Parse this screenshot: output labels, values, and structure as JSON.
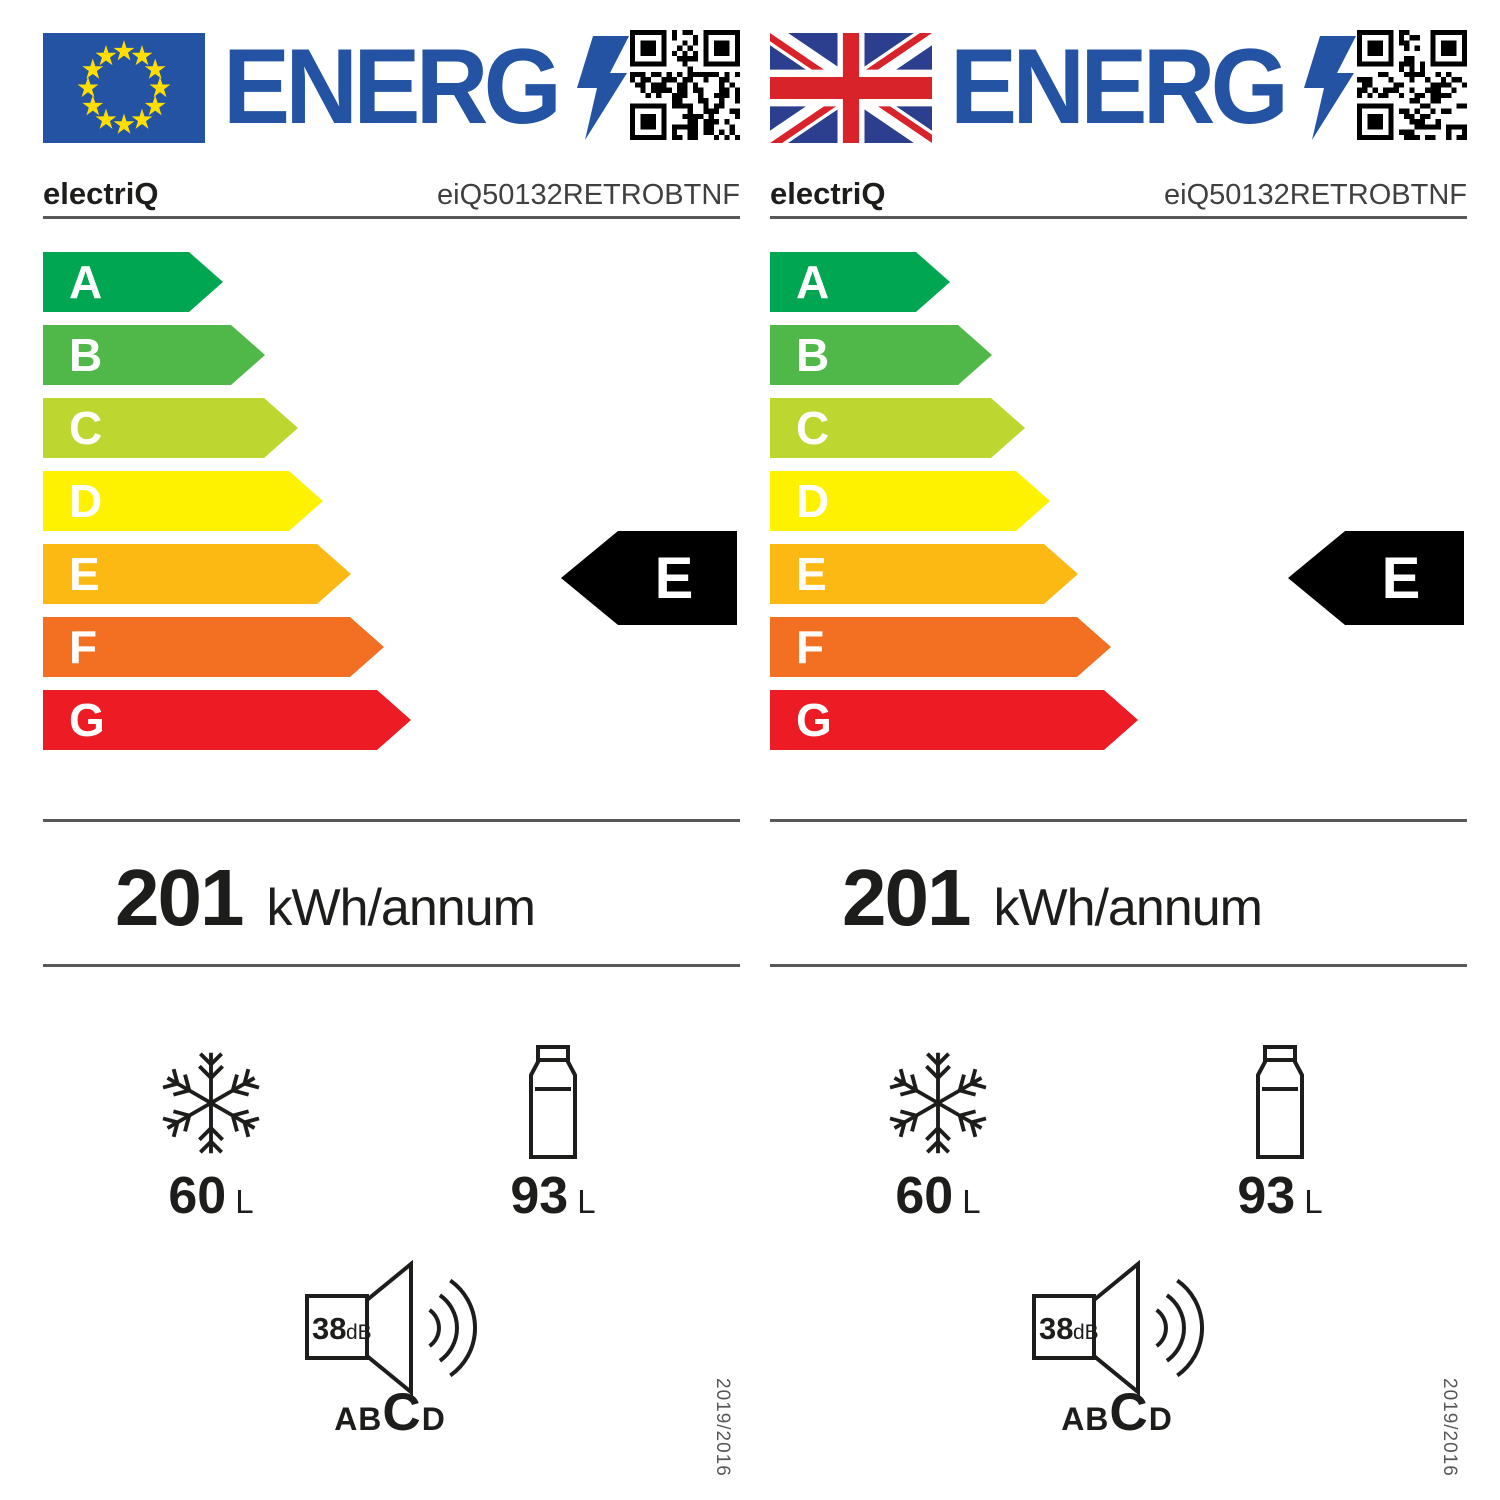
{
  "labels": [
    {
      "region_flag": "eu-flag",
      "logo_text": "ENERG",
      "logo_color": "#2353a2",
      "brand": "electriQ",
      "model": "eiQ50132RETROBTNF",
      "classes": [
        {
          "letter": "A",
          "color": "#00a651"
        },
        {
          "letter": "B",
          "color": "#50b848"
        },
        {
          "letter": "C",
          "color": "#bed630"
        },
        {
          "letter": "D",
          "color": "#fff200"
        },
        {
          "letter": "E",
          "color": "#fdb913"
        },
        {
          "letter": "F",
          "color": "#f36f21"
        },
        {
          "letter": "G",
          "color": "#ed1c24"
        }
      ],
      "rating": {
        "grade": "E",
        "color": "#000000"
      },
      "energy": {
        "value": "201",
        "unit": "kWh/annum"
      },
      "freezer_volume": {
        "value": "60",
        "unit": "L"
      },
      "fridge_volume": {
        "value": "93",
        "unit": "L"
      },
      "noise": {
        "value": "38",
        "unit": "dB",
        "scale": [
          "A",
          "B",
          "C",
          "D"
        ],
        "rating": "C"
      },
      "regulation": "2019/2016"
    },
    {
      "region_flag": "uk-flag",
      "logo_text": "ENERG",
      "logo_color": "#2353a2",
      "brand": "electriQ",
      "model": "eiQ50132RETROBTNF",
      "classes": [
        {
          "letter": "A",
          "color": "#00a651"
        },
        {
          "letter": "B",
          "color": "#50b848"
        },
        {
          "letter": "C",
          "color": "#bed630"
        },
        {
          "letter": "D",
          "color": "#fff200"
        },
        {
          "letter": "E",
          "color": "#fdb913"
        },
        {
          "letter": "F",
          "color": "#f36f21"
        },
        {
          "letter": "G",
          "color": "#ed1c24"
        }
      ],
      "rating": {
        "grade": "E",
        "color": "#000000"
      },
      "energy": {
        "value": "201",
        "unit": "kWh/annum"
      },
      "freezer_volume": {
        "value": "60",
        "unit": "L"
      },
      "fridge_volume": {
        "value": "93",
        "unit": "L"
      },
      "noise": {
        "value": "38",
        "unit": "dB",
        "scale": [
          "A",
          "B",
          "C",
          "D"
        ],
        "rating": "C"
      },
      "regulation": "2019/2016"
    }
  ]
}
